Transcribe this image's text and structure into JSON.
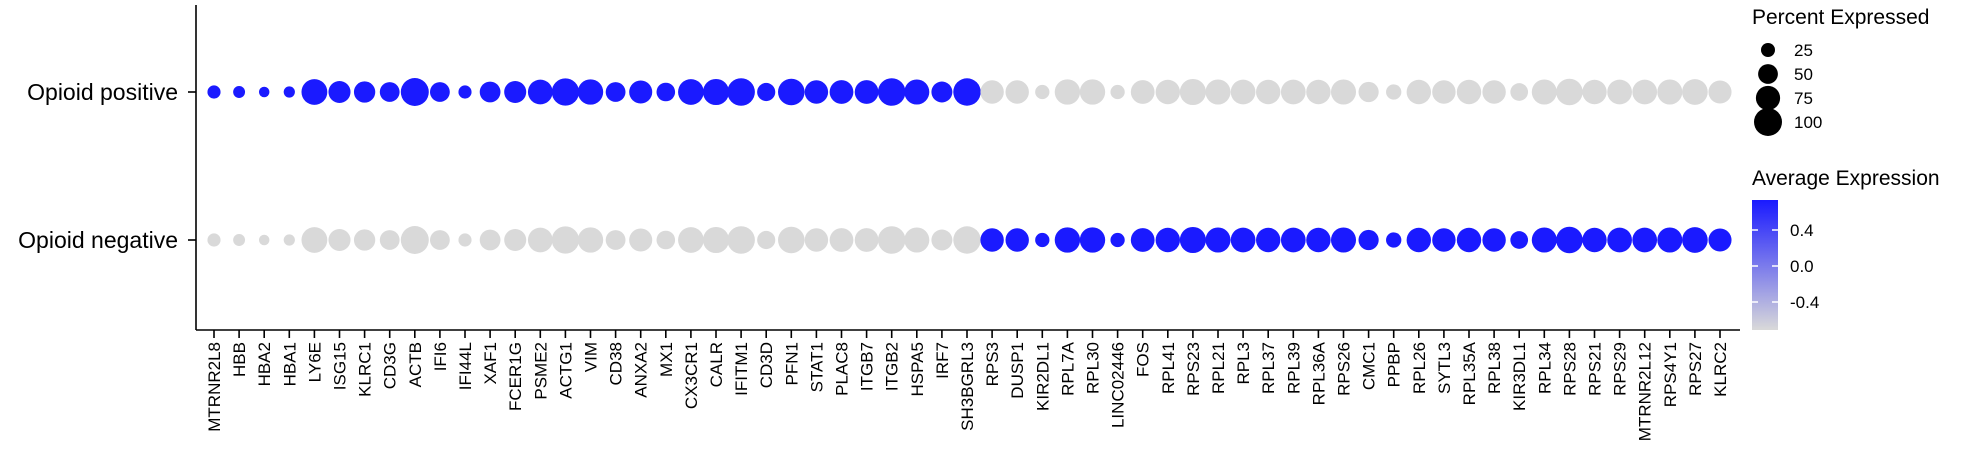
{
  "chart_data": {
    "type": "dotplot",
    "rows": [
      "Opioid positive",
      "Opioid negative"
    ],
    "genes": [
      "MTRNR2L8",
      "HBB",
      "HBA2",
      "HBA1",
      "LY6E",
      "ISG15",
      "KLRC1",
      "CD3G",
      "ACTB",
      "IFI6",
      "IFI44L",
      "XAF1",
      "FCER1G",
      "PSME2",
      "ACTG1",
      "VIM",
      "CD38",
      "ANXA2",
      "MX1",
      "CX3CR1",
      "CALR",
      "IFITM1",
      "CD3D",
      "PFN1",
      "STAT1",
      "PLAC8",
      "ITGB7",
      "ITGB2",
      "HSPA5",
      "IRF7",
      "SH3BGRL3",
      "RPS3",
      "DUSP1",
      "KIR2DL1",
      "RPL7A",
      "RPL30",
      "LINC02446",
      "FOS",
      "RPL41",
      "RPS23",
      "RPL21",
      "RPL3",
      "RPL37",
      "RPL39",
      "RPL36A",
      "RPS26",
      "CMC1",
      "PPBP",
      "RPL26",
      "SYTL3",
      "RPL35A",
      "RPL38",
      "KIR3DL1",
      "RPL34",
      "RPS28",
      "RPS21",
      "RPS29",
      "MTRNR2L12",
      "RPS4Y1",
      "RPS27",
      "KLRC2"
    ],
    "pct_expressed": [
      [
        22,
        18,
        14,
        16,
        85,
        62,
        58,
        50,
        100,
        50,
        22,
        55,
        62,
        78,
        95,
        82,
        50,
        68,
        44,
        84,
        87,
        97,
        42,
        90,
        70,
        72,
        72,
        97,
        80,
        56,
        96,
        70,
        70,
        26,
        82,
        82,
        26,
        72,
        76,
        87,
        80,
        78,
        76,
        78,
        76,
        80,
        52,
        30,
        76,
        70,
        76,
        70,
        40,
        80,
        90,
        76,
        78,
        78,
        80,
        84,
        68
      ],
      [
        22,
        18,
        14,
        16,
        85,
        62,
        58,
        50,
        100,
        50,
        22,
        55,
        62,
        78,
        95,
        82,
        50,
        68,
        44,
        84,
        87,
        97,
        42,
        90,
        70,
        72,
        72,
        97,
        80,
        56,
        96,
        70,
        70,
        26,
        82,
        82,
        26,
        72,
        76,
        87,
        80,
        78,
        76,
        78,
        76,
        80,
        52,
        30,
        76,
        70,
        76,
        70,
        40,
        80,
        90,
        76,
        78,
        78,
        80,
        84,
        68
      ]
    ],
    "avg_expression_high_row": [
      0,
      0,
      0,
      0,
      0,
      0,
      0,
      0,
      0,
      0,
      0,
      0,
      0,
      0,
      0,
      0,
      0,
      0,
      0,
      0,
      0,
      0,
      0,
      0,
      0,
      0,
      0,
      0,
      0,
      0,
      0,
      1,
      1,
      1,
      1,
      1,
      1,
      1,
      1,
      1,
      1,
      1,
      1,
      1,
      1,
      1,
      1,
      1,
      1,
      1,
      1,
      1,
      1,
      1,
      1,
      1,
      1,
      1,
      1,
      1,
      1
    ],
    "size_legend": {
      "title": "Percent Expressed",
      "values": [
        "25",
        "50",
        "75",
        "100"
      ]
    },
    "color_legend": {
      "title": "Average Expression",
      "ticks": [
        "0.4",
        "0.0",
        "-0.4"
      ],
      "low_color": "#d9d9d9",
      "high_color": "#1a1aff"
    },
    "grid": false,
    "legend_position": "right"
  }
}
